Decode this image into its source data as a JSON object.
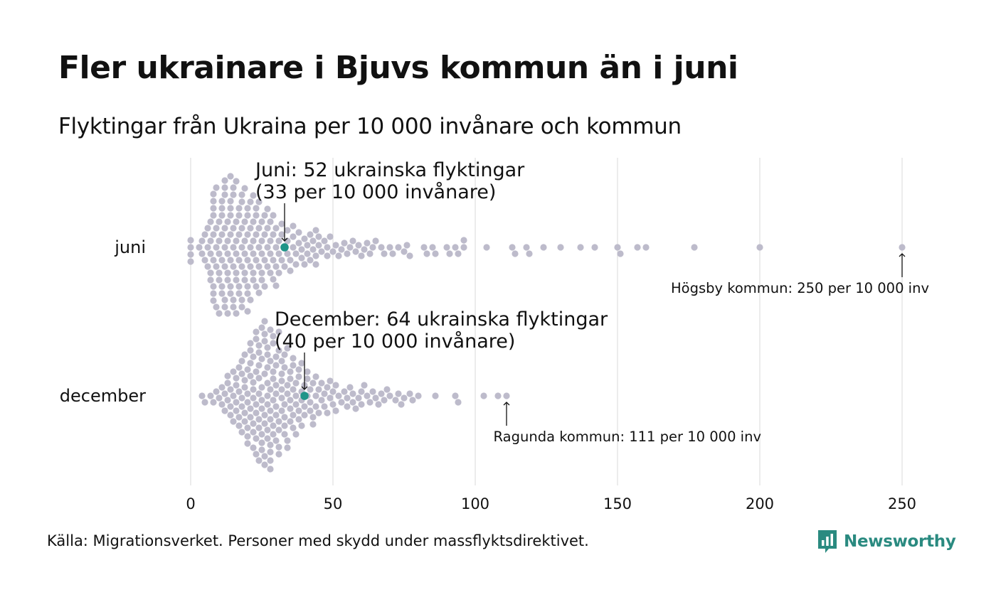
{
  "title": "Fler ukrainare i Bjuvs kommun än i juni",
  "subtitle": "Flyktingar från Ukraina per 10 000 invånare och kommun",
  "source": "Källa: Migrationsverket. Personer med skydd under massflyktsdirektivet.",
  "brand": {
    "name": "Newsworthy",
    "color": "#2a8a80"
  },
  "colors": {
    "dot": "#bdbbcb",
    "highlight": "#1f9488",
    "grid": "#d9d9d9"
  },
  "chart_data": {
    "type": "scatter",
    "layout": "beeswarm",
    "xlim": [
      0,
      250
    ],
    "xticks": [
      0,
      50,
      100,
      150,
      200,
      250
    ],
    "grid": "vertical",
    "categories": [
      "juni",
      "december"
    ],
    "series": [
      {
        "name": "juni",
        "highlight": {
          "value": 33,
          "label_line1": "Juni: 52 ukrainska flyktingar",
          "label_line2": "(33 per 10 000 invånare)"
        },
        "max": {
          "value": 250,
          "label": "Högsby kommun: 250 per 10 000 inv"
        },
        "values": [
          0,
          0,
          0,
          0,
          3,
          4,
          4,
          5,
          5,
          6,
          6,
          6,
          7,
          7,
          7,
          7,
          7,
          8,
          8,
          8,
          8,
          8,
          8,
          8,
          8,
          8,
          9,
          9,
          9,
          9,
          9,
          10,
          10,
          10,
          10,
          10,
          10,
          11,
          11,
          11,
          11,
          11,
          11,
          11,
          12,
          12,
          12,
          12,
          12,
          12,
          12,
          12,
          13,
          13,
          13,
          13,
          13,
          13,
          14,
          14,
          14,
          14,
          14,
          14,
          14,
          14,
          15,
          15,
          15,
          15,
          15,
          15,
          15,
          16,
          16,
          16,
          16,
          16,
          16,
          16,
          17,
          17,
          17,
          17,
          17,
          17,
          18,
          18,
          18,
          18,
          18,
          18,
          18,
          19,
          19,
          19,
          19,
          19,
          19,
          20,
          20,
          20,
          20,
          20,
          20,
          20,
          21,
          21,
          21,
          21,
          21,
          22,
          22,
          22,
          22,
          22,
          22,
          23,
          23,
          23,
          23,
          23,
          24,
          24,
          24,
          24,
          24,
          25,
          25,
          25,
          25,
          25,
          26,
          26,
          26,
          26,
          27,
          27,
          27,
          27,
          28,
          28,
          28,
          28,
          29,
          29,
          29,
          29,
          30,
          30,
          30,
          30,
          31,
          31,
          31,
          32,
          32,
          32,
          33,
          33,
          34,
          34,
          34,
          35,
          35,
          36,
          36,
          36,
          37,
          37,
          38,
          38,
          39,
          39,
          40,
          40,
          41,
          41,
          42,
          42,
          43,
          43,
          44,
          44,
          44,
          45,
          45,
          46,
          47,
          48,
          48,
          49,
          50,
          51,
          52,
          53,
          54,
          55,
          56,
          57,
          58,
          59,
          60,
          61,
          62,
          63,
          64,
          65,
          67,
          68,
          70,
          71,
          73,
          75,
          76,
          77,
          82,
          83,
          85,
          86,
          90,
          91,
          93,
          94,
          96,
          96,
          104,
          113,
          114,
          118,
          119,
          124,
          130,
          137,
          142,
          150,
          151,
          157,
          160,
          177,
          200,
          250
        ]
      },
      {
        "name": "december",
        "highlight": {
          "value": 40,
          "label_line1": "December: 64 ukrainska flyktingar",
          "label_line2": "(40 per 10 000 invånare)"
        },
        "max": {
          "value": 111,
          "label": "Ragunda kommun: 111 per 10 000 inv"
        },
        "values": [
          4,
          5,
          7,
          8,
          9,
          10,
          11,
          11,
          12,
          12,
          13,
          13,
          13,
          14,
          14,
          14,
          15,
          15,
          15,
          16,
          16,
          16,
          16,
          17,
          17,
          17,
          17,
          18,
          18,
          18,
          18,
          18,
          19,
          19,
          19,
          19,
          19,
          20,
          20,
          20,
          20,
          20,
          20,
          21,
          21,
          21,
          21,
          21,
          21,
          22,
          22,
          22,
          22,
          22,
          22,
          22,
          23,
          23,
          23,
          23,
          23,
          23,
          23,
          24,
          24,
          24,
          24,
          24,
          24,
          24,
          24,
          25,
          25,
          25,
          25,
          25,
          25,
          25,
          25,
          26,
          26,
          26,
          26,
          26,
          26,
          26,
          26,
          27,
          27,
          27,
          27,
          27,
          27,
          27,
          27,
          28,
          28,
          28,
          28,
          28,
          28,
          28,
          28,
          28,
          29,
          29,
          29,
          29,
          29,
          29,
          29,
          30,
          30,
          30,
          30,
          30,
          30,
          30,
          31,
          31,
          31,
          31,
          31,
          31,
          32,
          32,
          32,
          32,
          32,
          32,
          33,
          33,
          33,
          33,
          33,
          33,
          34,
          34,
          34,
          34,
          34,
          35,
          35,
          35,
          35,
          35,
          36,
          36,
          36,
          36,
          36,
          37,
          37,
          37,
          37,
          38,
          38,
          38,
          38,
          39,
          39,
          39,
          39,
          40,
          40,
          40,
          41,
          41,
          41,
          42,
          42,
          42,
          43,
          43,
          43,
          44,
          44,
          44,
          45,
          45,
          46,
          46,
          47,
          47,
          48,
          48,
          49,
          49,
          50,
          50,
          51,
          51,
          52,
          53,
          54,
          55,
          55,
          56,
          57,
          57,
          58,
          59,
          60,
          60,
          61,
          62,
          63,
          64,
          65,
          66,
          67,
          68,
          69,
          70,
          72,
          73,
          74,
          75,
          77,
          78,
          80,
          86,
          93,
          94,
          103,
          108,
          111
        ]
      }
    ]
  }
}
